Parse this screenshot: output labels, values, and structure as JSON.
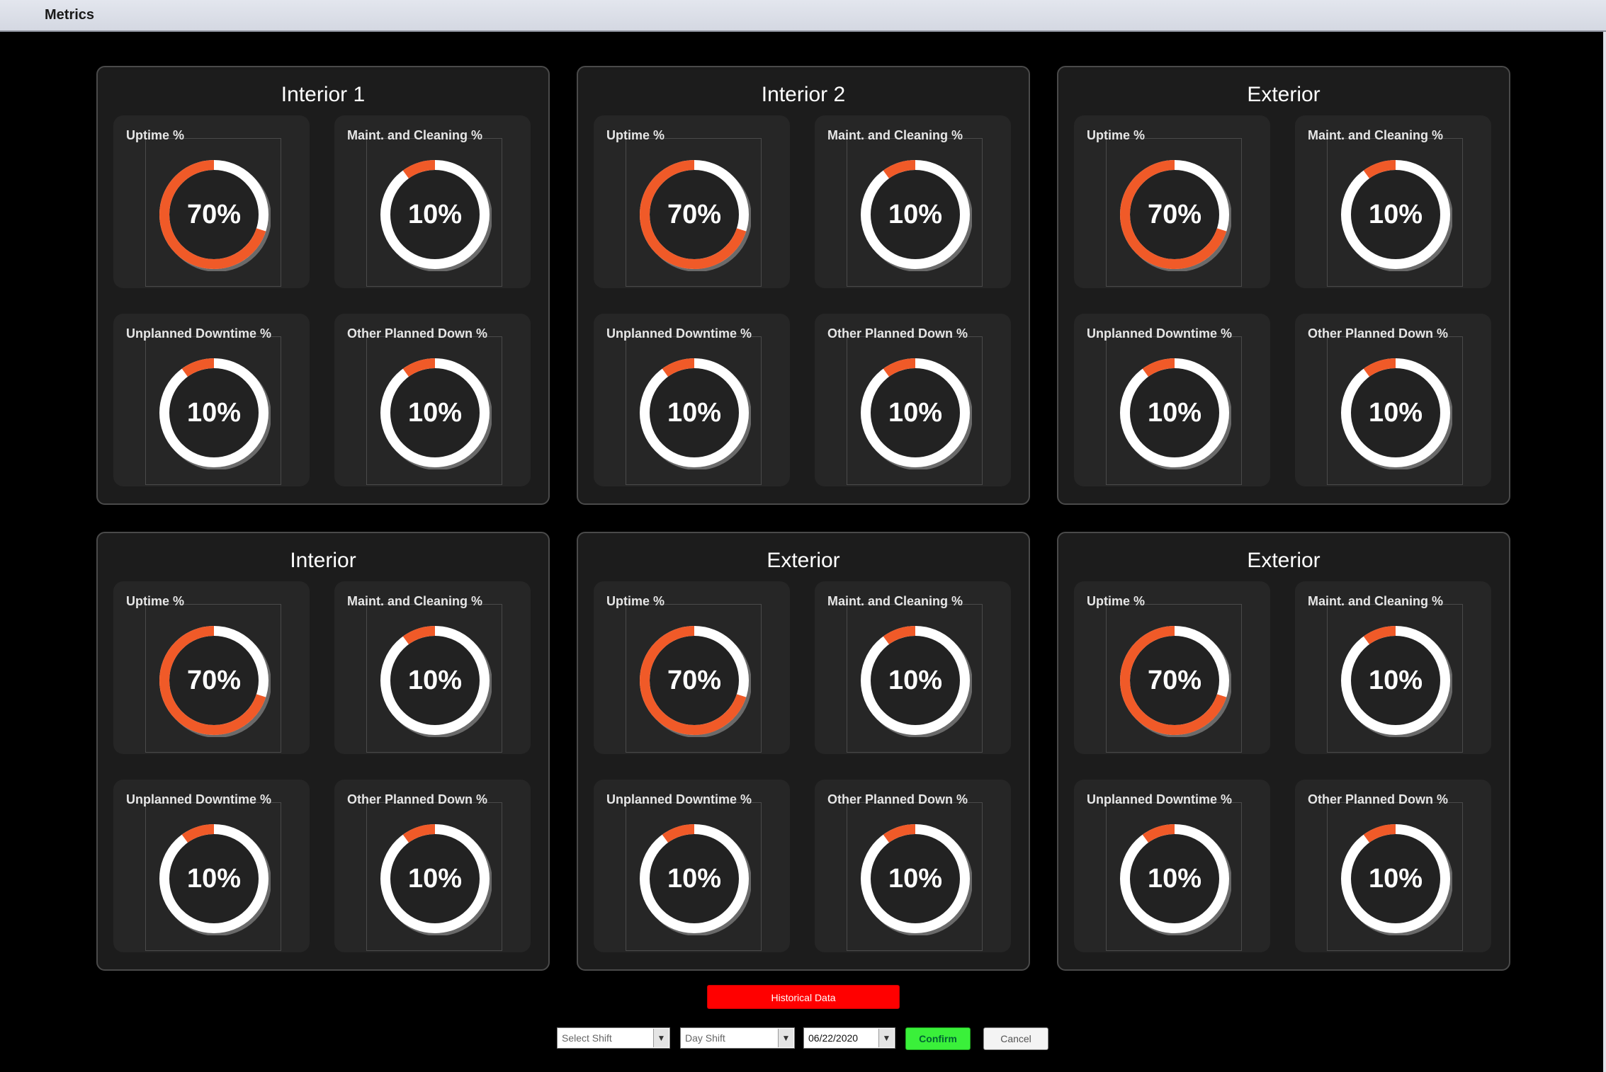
{
  "window": {
    "title": "Metrics"
  },
  "colors": {
    "accent": "#f05a28",
    "ring": "#ffffff",
    "confirm": "#3af03a",
    "historical": "#ff0000"
  },
  "panels": [
    {
      "title": "Interior 1",
      "cards": [
        {
          "label": "Uptime %",
          "value_text": "70%",
          "percent": 70
        },
        {
          "label": "Maint. and Cleaning %",
          "value_text": "10%",
          "percent": 10
        },
        {
          "label": "Unplanned Downtime %",
          "value_text": "10%",
          "percent": 10
        },
        {
          "label": "Other Planned Down %",
          "value_text": "10%",
          "percent": 10
        }
      ]
    },
    {
      "title": "Interior 2",
      "cards": [
        {
          "label": "Uptime %",
          "value_text": "70%",
          "percent": 70
        },
        {
          "label": "Maint. and Cleaning %",
          "value_text": "10%",
          "percent": 10
        },
        {
          "label": "Unplanned Downtime %",
          "value_text": "10%",
          "percent": 10
        },
        {
          "label": "Other Planned Down %",
          "value_text": "10%",
          "percent": 10
        }
      ]
    },
    {
      "title": "Exterior",
      "cards": [
        {
          "label": "Uptime %",
          "value_text": "70%",
          "percent": 70
        },
        {
          "label": "Maint. and Cleaning %",
          "value_text": "10%",
          "percent": 10
        },
        {
          "label": "Unplanned Downtime %",
          "value_text": "10%",
          "percent": 10
        },
        {
          "label": "Other Planned Down %",
          "value_text": "10%",
          "percent": 10
        }
      ]
    },
    {
      "title": "Interior",
      "cards": [
        {
          "label": "Uptime %",
          "value_text": "70%",
          "percent": 70
        },
        {
          "label": "Maint. and Cleaning %",
          "value_text": "10%",
          "percent": 10
        },
        {
          "label": "Unplanned Downtime %",
          "value_text": "10%",
          "percent": 10
        },
        {
          "label": "Other Planned Down %",
          "value_text": "10%",
          "percent": 10
        }
      ]
    },
    {
      "title": "Exterior",
      "cards": [
        {
          "label": "Uptime %",
          "value_text": "70%",
          "percent": 70
        },
        {
          "label": "Maint. and Cleaning %",
          "value_text": "10%",
          "percent": 10
        },
        {
          "label": "Unplanned Downtime %",
          "value_text": "10%",
          "percent": 10
        },
        {
          "label": "Other Planned Down %",
          "value_text": "10%",
          "percent": 10
        }
      ]
    },
    {
      "title": "Exterior",
      "cards": [
        {
          "label": "Uptime %",
          "value_text": "70%",
          "percent": 70
        },
        {
          "label": "Maint. and Cleaning %",
          "value_text": "10%",
          "percent": 10
        },
        {
          "label": "Unplanned Downtime %",
          "value_text": "10%",
          "percent": 10
        },
        {
          "label": "Other Planned Down %",
          "value_text": "10%",
          "percent": 10
        }
      ]
    }
  ],
  "controls": {
    "historical_label": "Historical Data",
    "shift_select": {
      "value": "Select Shift"
    },
    "shift_type_select": {
      "value": "Day Shift"
    },
    "date_select": {
      "value": "06/22/2020"
    },
    "confirm_label": "Confirm",
    "cancel_label": "Cancel"
  }
}
